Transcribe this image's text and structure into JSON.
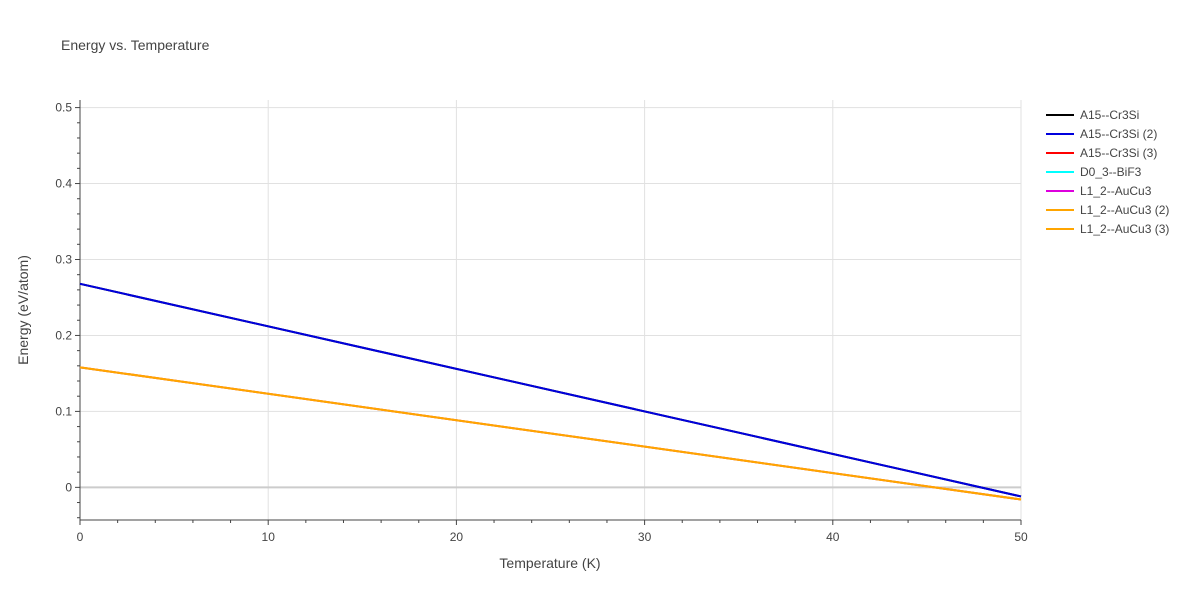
{
  "chart_data": {
    "type": "line",
    "title": "Energy vs. Temperature",
    "xlabel": "Temperature (K)",
    "ylabel": "Energy (eV/atom)",
    "xlim": [
      0,
      50
    ],
    "ylim": [
      -0.043,
      0.51
    ],
    "xticks": [
      0,
      10,
      20,
      30,
      40,
      50
    ],
    "xtick_labels": [
      "0",
      "10",
      "20",
      "30",
      "40",
      "50"
    ],
    "yticks": [
      0,
      0.1,
      0.2,
      0.3,
      0.4,
      0.5
    ],
    "ytick_labels": [
      "0",
      "0.1",
      "0.2",
      "0.3",
      "0.4",
      "0.5"
    ],
    "x_minor_step": 2,
    "y_minor_step": 0.02,
    "grid": true,
    "legend_position": "right",
    "series": [
      {
        "name": "A15--Cr3Si",
        "color": "#000000",
        "x": [
          0,
          50
        ],
        "y": [
          0.268,
          -0.012
        ]
      },
      {
        "name": "A15--Cr3Si (2)",
        "color": "#0000dd",
        "x": [
          0,
          50
        ],
        "y": [
          0.268,
          -0.012
        ]
      },
      {
        "name": "A15--Cr3Si (3)",
        "color": "#ff0000",
        "x": [],
        "y": []
      },
      {
        "name": "D0_3--BiF3",
        "color": "#00ffff",
        "x": [],
        "y": []
      },
      {
        "name": "L1_2--AuCu3",
        "color": "#dd00dd",
        "x": [
          0,
          50
        ],
        "y": [
          0.158,
          -0.016
        ]
      },
      {
        "name": "L1_2--AuCu3 (2)",
        "color": "#ffa500",
        "x": [
          0,
          50
        ],
        "y": [
          0.158,
          -0.016
        ]
      },
      {
        "name": "L1_2--AuCu3 (3)",
        "color": "#ffa500",
        "x": [
          0,
          50
        ],
        "y": [
          0.158,
          -0.016
        ]
      }
    ]
  }
}
